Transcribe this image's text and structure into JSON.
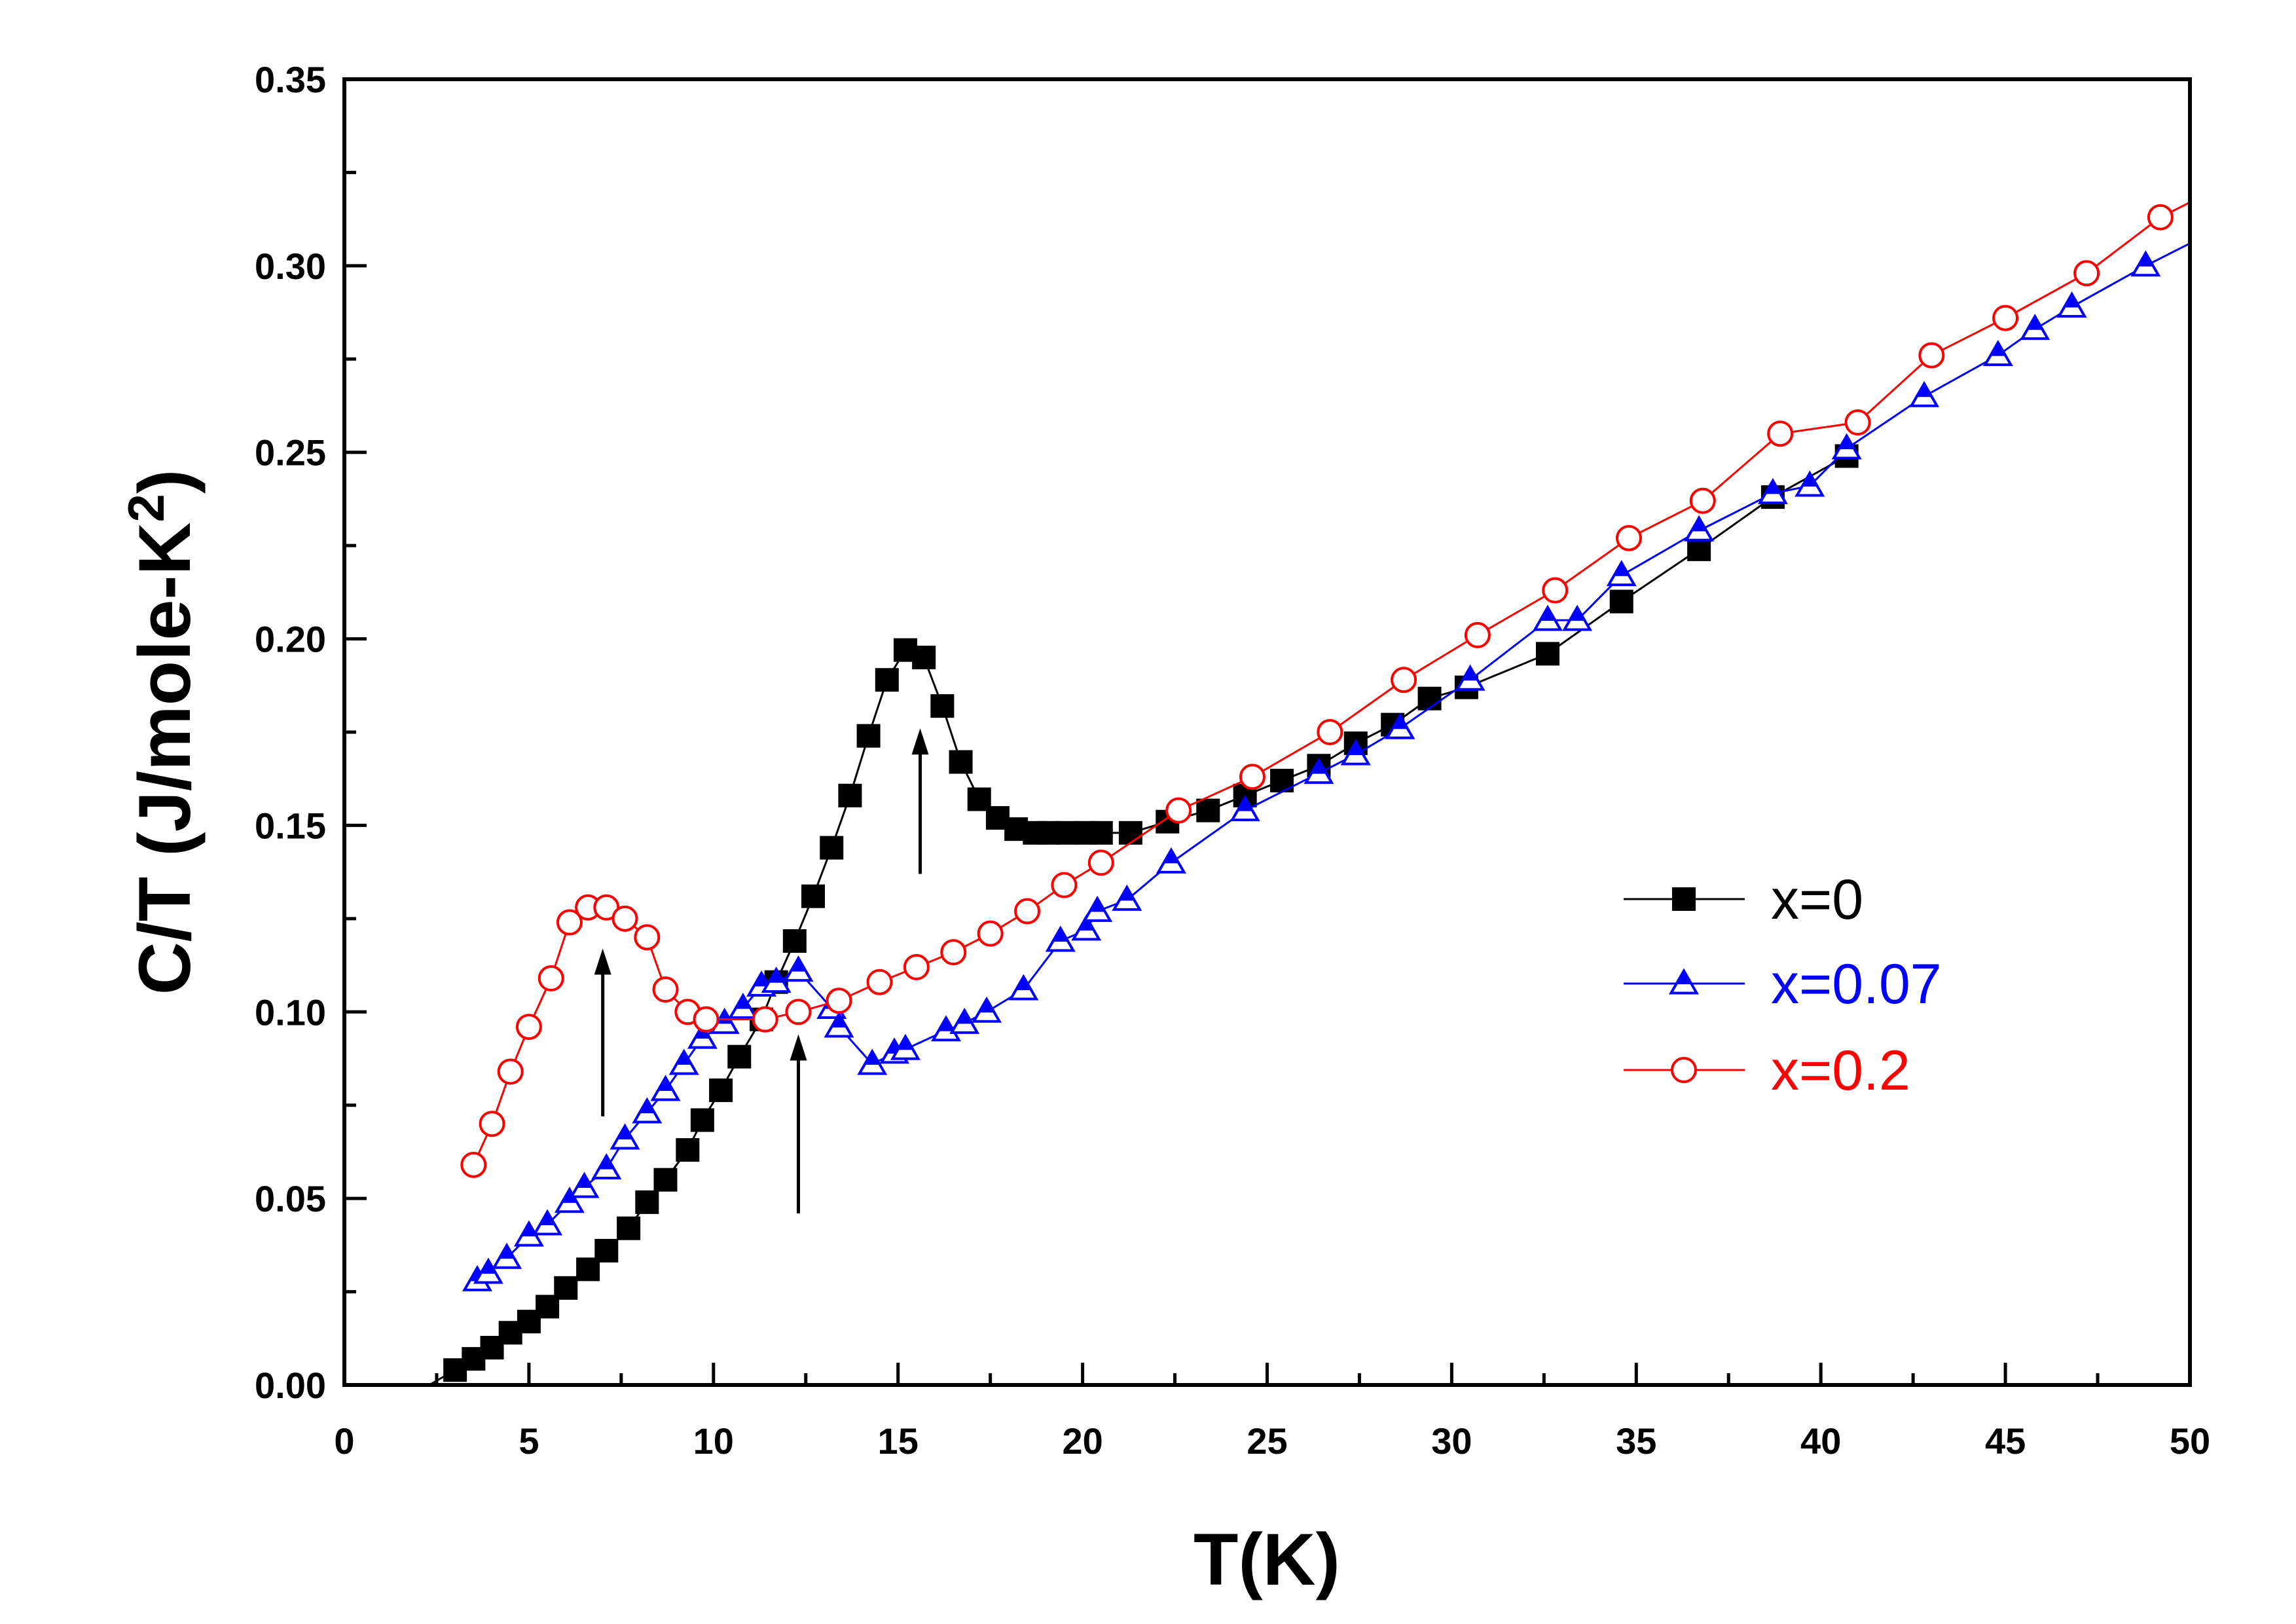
{
  "chart_data": {
    "type": "line",
    "title": "",
    "xlabel": "T(K)",
    "ylabel": {
      "main": "C/T (J/mole-K",
      "superscript": "2",
      "close": ")"
    },
    "xlim": [
      0,
      50
    ],
    "ylim": [
      0,
      0.35
    ],
    "xticks": [
      "0",
      "5",
      "10",
      "15",
      "20",
      "25",
      "30",
      "35",
      "40",
      "45",
      "50"
    ],
    "yticks": [
      "0.00",
      "0.05",
      "0.10",
      "0.15",
      "0.20",
      "0.25",
      "0.30",
      "0.35"
    ],
    "legend_position": "right-middle",
    "series": [
      {
        "name": "x=0",
        "color": "#000000",
        "marker": "filled-square",
        "x": [
          2.3,
          3.0,
          3.5,
          4.0,
          4.5,
          5.0,
          5.5,
          6.0,
          6.6,
          7.1,
          7.7,
          8.2,
          8.7,
          9.3,
          9.7,
          10.2,
          10.7,
          11.3,
          11.7,
          12.2,
          12.7,
          13.2,
          13.7,
          14.2,
          14.7,
          15.2,
          15.7,
          16.2,
          16.7,
          17.2,
          17.7,
          18.2,
          18.7,
          19.1,
          19.6,
          20.1,
          20.5,
          21.3,
          22.3,
          23.4,
          24.4,
          25.4,
          26.4,
          27.4,
          28.4,
          29.4,
          30.4,
          32.6,
          34.6,
          36.7,
          38.7,
          40.7
        ],
        "values": [
          0.0,
          0.004,
          0.007,
          0.01,
          0.014,
          0.017,
          0.021,
          0.026,
          0.031,
          0.036,
          0.042,
          0.049,
          0.055,
          0.063,
          0.071,
          0.079,
          0.088,
          0.098,
          0.108,
          0.119,
          0.131,
          0.144,
          0.158,
          0.174,
          0.189,
          0.197,
          0.195,
          0.182,
          0.167,
          0.157,
          0.152,
          0.149,
          0.148,
          0.148,
          0.148,
          0.148,
          0.148,
          0.148,
          0.151,
          0.154,
          0.158,
          0.162,
          0.166,
          0.172,
          0.177,
          0.184,
          0.187,
          0.196,
          0.21,
          0.224,
          0.238,
          0.249
        ]
      },
      {
        "name": "x=0.07",
        "color": "#0000ff",
        "marker": "half-filled-triangle",
        "x": [
          3.6,
          3.9,
          4.4,
          5.0,
          5.5,
          6.1,
          6.5,
          7.1,
          7.6,
          8.2,
          8.7,
          9.2,
          9.7,
          10.3,
          10.8,
          11.3,
          11.7,
          12.3,
          13.2,
          13.4,
          14.3,
          14.9,
          15.2,
          16.3,
          16.8,
          17.4,
          18.4,
          19.4,
          20.1,
          20.4,
          21.2,
          22.4,
          24.4,
          26.4,
          27.4,
          28.6,
          30.5,
          32.6,
          33.4,
          34.6,
          36.7,
          38.7,
          39.7,
          40.7,
          42.8,
          44.8,
          45.8,
          46.8,
          48.8,
          50.0
        ],
        "values": [
          0.028,
          0.03,
          0.034,
          0.04,
          0.043,
          0.049,
          0.053,
          0.058,
          0.066,
          0.073,
          0.079,
          0.086,
          0.093,
          0.097,
          0.101,
          0.107,
          0.108,
          0.111,
          0.101,
          0.096,
          0.086,
          0.089,
          0.09,
          0.095,
          0.097,
          0.1,
          0.106,
          0.119,
          0.122,
          0.127,
          0.13,
          0.14,
          0.154,
          0.164,
          0.169,
          0.176,
          0.189,
          0.205,
          0.205,
          0.217,
          0.229,
          0.239,
          0.241,
          0.251,
          0.265,
          0.276,
          0.283,
          0.289,
          0.3,
          0.306
        ]
      },
      {
        "name": "x=0.2",
        "color": "#ff0000",
        "marker": "open-circle",
        "x": [
          3.5,
          4.0,
          4.5,
          5.0,
          5.6,
          6.1,
          6.6,
          7.1,
          7.6,
          8.2,
          8.7,
          9.3,
          9.8,
          11.4,
          12.3,
          13.4,
          14.5,
          15.5,
          16.5,
          17.5,
          18.5,
          19.5,
          20.5,
          22.6,
          24.6,
          26.7,
          28.7,
          30.7,
          32.8,
          34.8,
          36.8,
          38.9,
          41.0,
          43.0,
          45.0,
          47.2,
          49.2,
          50.0
        ],
        "values": [
          0.059,
          0.07,
          0.084,
          0.096,
          0.109,
          0.124,
          0.128,
          0.128,
          0.125,
          0.12,
          0.106,
          0.1,
          0.098,
          0.098,
          0.1,
          0.103,
          0.108,
          0.112,
          0.116,
          0.121,
          0.127,
          0.134,
          0.14,
          0.154,
          0.163,
          0.175,
          0.189,
          0.201,
          0.213,
          0.227,
          0.237,
          0.255,
          0.258,
          0.276,
          0.286,
          0.298,
          0.313,
          0.317
        ]
      }
    ],
    "annotations": [
      {
        "type": "arrow-up",
        "x": 7.0,
        "y_from": 0.072,
        "y_to": 0.117
      },
      {
        "type": "arrow-up",
        "x": 12.3,
        "y_from": 0.046,
        "y_to": 0.094
      },
      {
        "type": "arrow-up",
        "x": 15.6,
        "y_from": 0.137,
        "y_to": 0.176
      }
    ]
  }
}
